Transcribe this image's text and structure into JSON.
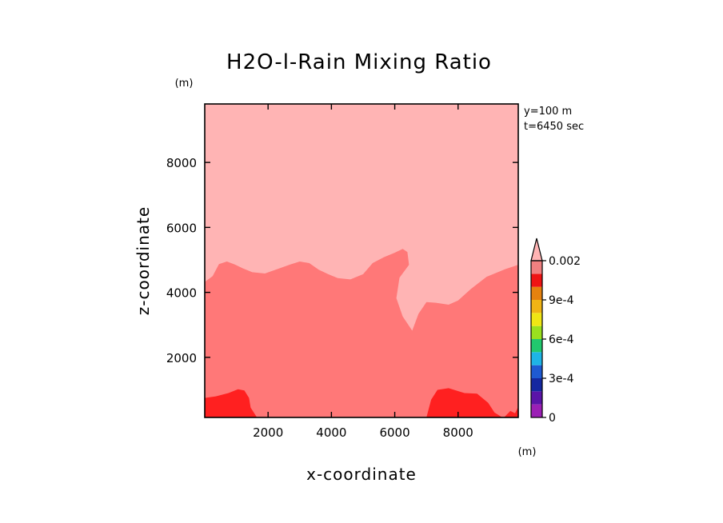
{
  "chart_data": {
    "type": "contour",
    "title": "H2O-l-Rain Mixing Ratio",
    "xlabel": "x-coordinate",
    "ylabel": "z-coordinate",
    "x_unit": "(m)",
    "y_unit": "(m)",
    "xlim": [
      0,
      9900
    ],
    "ylim": [
      150,
      9800
    ],
    "x_ticks": [
      2000,
      4000,
      6000,
      8000
    ],
    "y_ticks": [
      2000,
      4000,
      6000,
      8000
    ],
    "x_tick_labels": [
      "2000",
      "4000",
      "6000",
      "8000"
    ],
    "y_tick_labels": [
      "2000",
      "4000",
      "6000",
      "8000"
    ],
    "annotations": [
      "y=100 m",
      "t=6450 sec"
    ],
    "colorbar": {
      "levels": [
        0,
        0.0001,
        0.0002,
        0.0003,
        0.0004,
        0.0005,
        0.0006,
        0.0007,
        0.0008,
        0.0009,
        0.001,
        0.0015,
        0.002
      ],
      "colors": [
        "#9b1fb5",
        "#5a14a8",
        "#1428a0",
        "#1e5ad2",
        "#1eb4e6",
        "#22c86e",
        "#9ae01e",
        "#f0e614",
        "#f0b414",
        "#e6820f",
        "#ee1414",
        "#f08080",
        "#ffb4b4"
      ],
      "tick_labels": [
        "0",
        "3e-4",
        "6e-4",
        "9e-4",
        "0.002"
      ],
      "tick_values": [
        0,
        0.0003,
        0.0006,
        0.0009,
        0.002
      ],
      "extend": "max"
    },
    "regions": [
      {
        "name": "lower-mixing-region",
        "level": "0.001 - 0.0015",
        "color": "#ff7878",
        "boundary": [
          [
            0,
            4320
          ],
          [
            250,
            4500
          ],
          [
            450,
            4870
          ],
          [
            700,
            4950
          ],
          [
            950,
            4860
          ],
          [
            1200,
            4740
          ],
          [
            1500,
            4620
          ],
          [
            1900,
            4580
          ],
          [
            2300,
            4720
          ],
          [
            2700,
            4860
          ],
          [
            3000,
            4950
          ],
          [
            3300,
            4900
          ],
          [
            3600,
            4700
          ],
          [
            3900,
            4560
          ],
          [
            4200,
            4440
          ],
          [
            4600,
            4400
          ],
          [
            5000,
            4560
          ],
          [
            5300,
            4900
          ],
          [
            5650,
            5080
          ],
          [
            6000,
            5220
          ],
          [
            6250,
            5340
          ],
          [
            6400,
            5240
          ],
          [
            6450,
            4850
          ],
          [
            6150,
            4450
          ],
          [
            6050,
            3820
          ],
          [
            6250,
            3260
          ],
          [
            6550,
            2820
          ],
          [
            6750,
            3340
          ],
          [
            7000,
            3700
          ],
          [
            7300,
            3680
          ],
          [
            7700,
            3620
          ],
          [
            8000,
            3750
          ],
          [
            8400,
            4100
          ],
          [
            8900,
            4480
          ],
          [
            9500,
            4720
          ],
          [
            9900,
            4850
          ],
          [
            9900,
            150
          ],
          [
            0,
            150
          ]
        ]
      },
      {
        "name": "rain-core-left",
        "level": "0.0009 - 0.001",
        "color": "#ff2020",
        "boundary": [
          [
            0,
            750
          ],
          [
            350,
            800
          ],
          [
            750,
            900
          ],
          [
            1050,
            1020
          ],
          [
            1250,
            980
          ],
          [
            1400,
            750
          ],
          [
            1450,
            450
          ],
          [
            1650,
            150
          ],
          [
            0,
            150
          ]
        ]
      },
      {
        "name": "rain-core-right",
        "level": "0.0009 - 0.001",
        "color": "#ff2020",
        "boundary": [
          [
            7000,
            150
          ],
          [
            7150,
            700
          ],
          [
            7350,
            1000
          ],
          [
            7700,
            1050
          ],
          [
            8200,
            900
          ],
          [
            8600,
            880
          ],
          [
            8950,
            600
          ],
          [
            9150,
            300
          ],
          [
            9400,
            150
          ]
        ]
      },
      {
        "name": "rain-core-edge",
        "level": "0.0009 - 0.001",
        "color": "#ff2020",
        "boundary": [
          [
            9450,
            150
          ],
          [
            9650,
            350
          ],
          [
            9800,
            280
          ],
          [
            9900,
            480
          ],
          [
            9900,
            150
          ]
        ]
      }
    ],
    "background_level": {
      "level": "0.0015 - 0.002",
      "color": "#ffb4b4"
    }
  }
}
